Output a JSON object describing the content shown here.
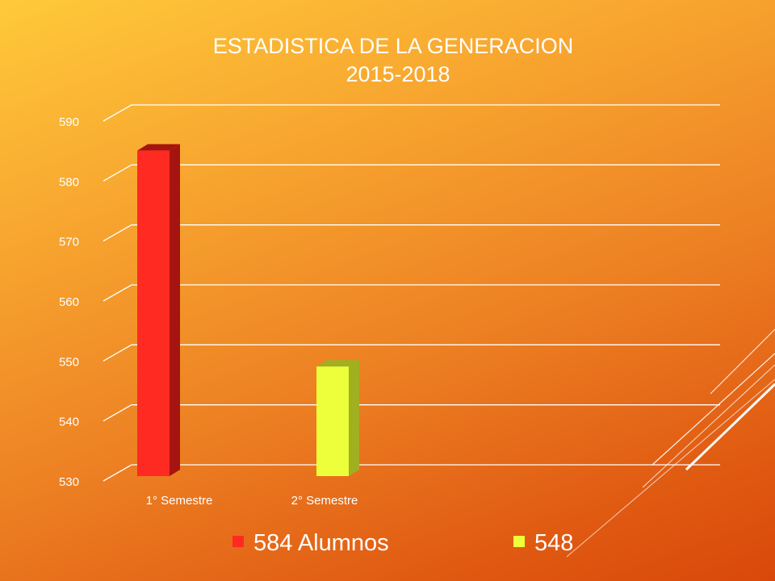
{
  "chart_data": {
    "type": "bar",
    "title": "ESTADISTICA DE LA GENERACION",
    "subtitle": "2015-2018",
    "categories": [
      "1° Semestre",
      "2° Semestre"
    ],
    "series": [
      {
        "name": "584 Alumnos",
        "values": [
          584,
          null
        ],
        "color": "#ff2a22",
        "side_color": "#a5140f"
      },
      {
        "name": "548",
        "values": [
          null,
          548
        ],
        "color": "#ecff3a",
        "side_color": "#a0b020"
      }
    ],
    "yticks": [
      530,
      540,
      550,
      560,
      570,
      580,
      590
    ],
    "ylim": [
      530,
      590
    ],
    "grid": true,
    "legend_position": "bottom"
  }
}
